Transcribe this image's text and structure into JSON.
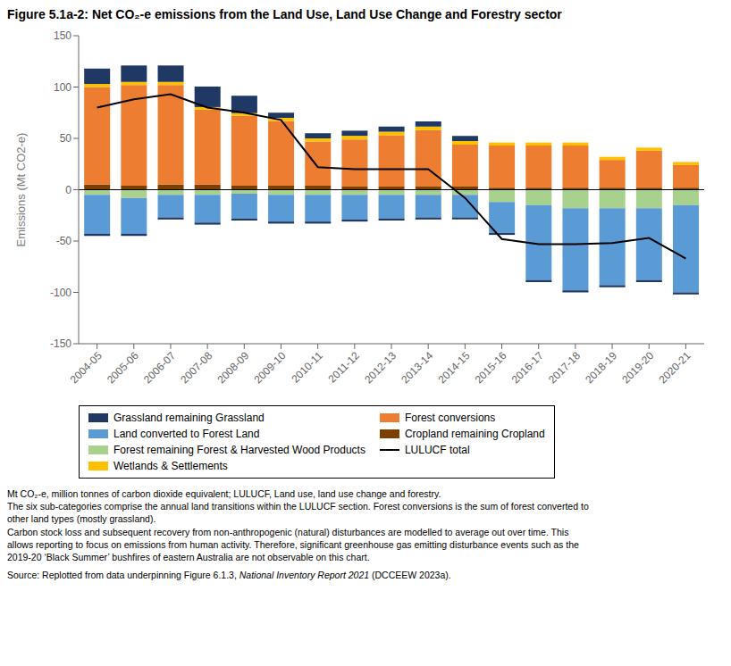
{
  "chart_data": {
    "type": "bar",
    "stacked": true,
    "grid": false,
    "legend": "bottom",
    "title": "Figure 5.1a-2: Net CO₂-e emissions from the Land Use, Land Use Change and Forestry sector",
    "ylabel": "Emissions (Mt CO2-e)",
    "categories": [
      "2004-05",
      "2005-06",
      "2006-07",
      "2007-08",
      "2008-09",
      "2009-10",
      "2010-11",
      "2011-12",
      "2012-13",
      "2013-14",
      "2014-15",
      "2015-16",
      "2016-17",
      "2017-18",
      "2018-19",
      "2019-20",
      "2020-21"
    ],
    "ylim": [
      -150,
      150
    ],
    "yticks": [
      -150,
      -100,
      -50,
      0,
      50,
      100,
      150
    ],
    "series": [
      {
        "name": "Cropland remaining Cropland",
        "type": "bar",
        "color": "#7b3f00",
        "values": [
          5.0,
          4.0,
          5.0,
          5.0,
          4.0,
          4.0,
          4.0,
          3.0,
          3.0,
          3.0,
          3.0,
          2.0,
          2.0,
          2.0,
          2.0,
          2.0,
          2.0
        ]
      },
      {
        "name": "Forest conversions",
        "type": "bar",
        "color": "#ed7d31",
        "values": [
          95.0,
          98.0,
          97.0,
          73.0,
          68.0,
          63.0,
          43.0,
          46.0,
          50.0,
          55.0,
          41.0,
          41.0,
          41.0,
          41.0,
          27.0,
          36.0,
          22.0
        ]
      },
      {
        "name": "Wetlands & Settlements",
        "type": "bar",
        "color": "#ffc000",
        "values": [
          3.0,
          3.0,
          3.0,
          2.5,
          2.5,
          3.0,
          3.0,
          3.5,
          3.5,
          3.5,
          3.5,
          3.0,
          3.0,
          3.0,
          3.0,
          3.0,
          3.0
        ]
      },
      {
        "name": "Grassland remaining Grassland",
        "type": "bar",
        "color": "#1f3864",
        "values": [
          15.0,
          16.0,
          16.0,
          20.0,
          17.0,
          5.0,
          5.0,
          5.0,
          5.0,
          5.0,
          5.0,
          0.0,
          0.0,
          0.0,
          0.0,
          0.0,
          0.0
        ]
      },
      {
        "name": "Forest remaining Forest & Harvested Wood Products",
        "type": "bar",
        "color": "#a9d18e",
        "values": [
          -5.0,
          -8.0,
          -5.0,
          -5.0,
          -4.0,
          -5.0,
          -5.0,
          -5.0,
          -5.0,
          -5.0,
          -5.0,
          -12.0,
          -15.0,
          -18.0,
          -18.0,
          -18.0,
          -15.0
        ]
      },
      {
        "name": "Land converted to Forest Land",
        "type": "bar",
        "color": "#5b9bd5",
        "values": [
          -38.0,
          -35.0,
          -22.0,
          -27.0,
          -24.0,
          -26.0,
          -26.0,
          -24.0,
          -23.0,
          -22.0,
          -22.0,
          -30.0,
          -73.0,
          -80.0,
          -75.0,
          -70.0,
          -85.0
        ]
      },
      {
        "name": "Grassland remaining Grassland",
        "type": "bar",
        "color": "#1f3864",
        "values": [
          -2.0,
          -2.0,
          -2.0,
          -2.0,
          -2.0,
          -2.0,
          -2.0,
          -2.0,
          -2.0,
          -2.0,
          -2.0,
          -2.0,
          -2.0,
          -2.0,
          -2.0,
          -2.0,
          -2.0
        ]
      },
      {
        "name": "LULUCF total",
        "type": "line",
        "color": "#000000",
        "values": [
          80.0,
          88.0,
          93.0,
          80.0,
          75.0,
          68.0,
          22.0,
          20.0,
          20.0,
          20.0,
          -8.0,
          -48.0,
          -53.0,
          -53.0,
          -52.0,
          -47.0,
          -67.0
        ]
      }
    ],
    "annotations": [
      "Mt CO₂-e, million tonnes of carbon dioxide equivalent; LULUCF, Land use, land use change and forestry.",
      "The six sub-categories comprise the annual land transitions within the LULUCF section. Forest conversions is the sum of forest converted to",
      "other land types (mostly grassland).",
      "Carbon stock loss and subsequent recovery from non-anthropogenic (natural) disturbances are modelled to average out over time. This",
      "allows reporting to focus on emissions from human activity. Therefore, significant greenhouse gas emitting disturbance events such as the",
      "2019-20 ‘Black Summer’ bushfires of eastern Australia are not observable on this chart."
    ],
    "source": [
      "Source: Replotted from data underpinning Figure 6.1.3, ",
      "National Inventory Report 2021",
      " (DCCEEW 2023a)."
    ]
  }
}
